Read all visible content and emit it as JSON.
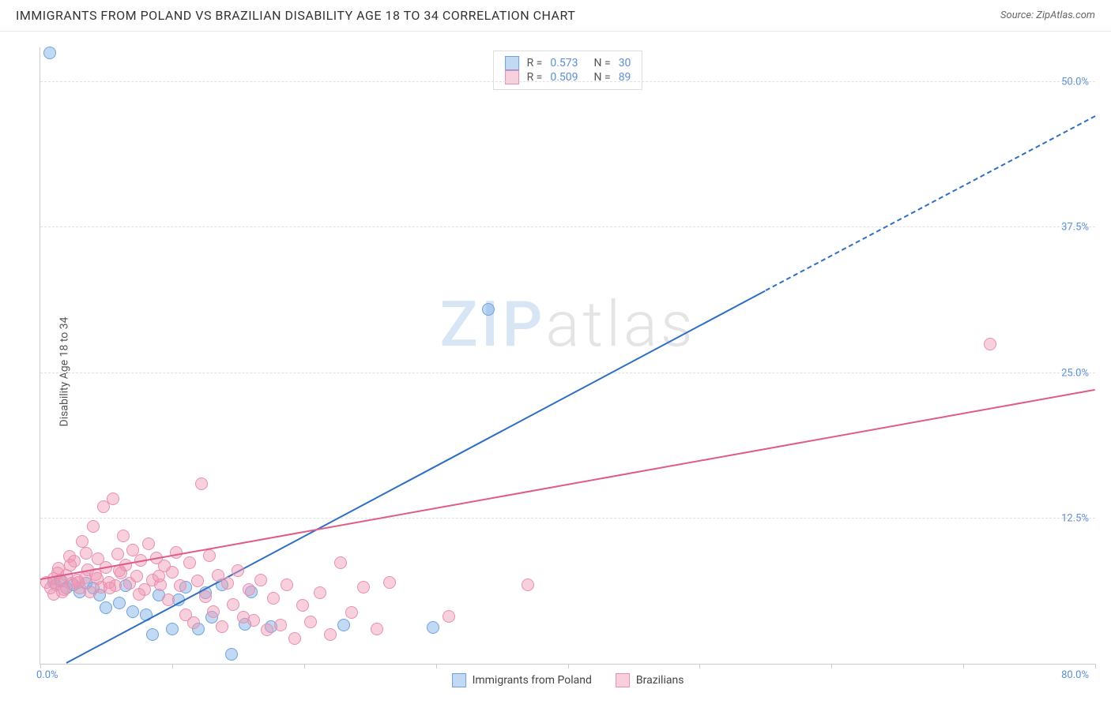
{
  "title": "IMMIGRANTS FROM POLAND VS BRAZILIAN DISABILITY AGE 18 TO 34 CORRELATION CHART",
  "source_label": "Source: ZipAtlas.com",
  "y_axis_label": "Disability Age 18 to 34",
  "watermark": {
    "part1": "ZIP",
    "part2": "atlas"
  },
  "chart": {
    "type": "scatter",
    "background_color": "#ffffff",
    "grid_color": "#e0e0e0",
    "axis_color": "#cccccc",
    "tick_label_color": "#5b8fd6",
    "label_fontsize": 14,
    "tick_fontsize": 13,
    "xlim": [
      0,
      80
    ],
    "ylim": [
      0,
      53
    ],
    "x_tick_positions": [
      0,
      10,
      20,
      30,
      40,
      50,
      60,
      70,
      80
    ],
    "x_start_label": "0.0%",
    "x_end_label": "80.0%",
    "y_grid": [
      {
        "v": 12.5,
        "label": "12.5%"
      },
      {
        "v": 25.0,
        "label": "25.0%"
      },
      {
        "v": 37.5,
        "label": "37.5%"
      },
      {
        "v": 50.0,
        "label": "50.0%"
      }
    ],
    "series": [
      {
        "key": "poland",
        "label": "Immigrants from Poland",
        "fill": "rgba(120,170,230,0.45)",
        "stroke": "#6fa2dd",
        "trend_color": "#2f6fc2",
        "marker_radius": 8,
        "R": "0.573",
        "N": "30",
        "trend": {
          "x1": 2,
          "y1": 0,
          "x2": 55,
          "y2": 32
        },
        "trend_dash": {
          "x1": 55,
          "y1": 32,
          "x2": 80,
          "y2": 47
        },
        "points": [
          {
            "x": 1,
            "y": 7
          },
          {
            "x": 1.5,
            "y": 7.2
          },
          {
            "x": 2,
            "y": 6.5
          },
          {
            "x": 2.5,
            "y": 6.8
          },
          {
            "x": 3,
            "y": 6.2
          },
          {
            "x": 3.5,
            "y": 6.9
          },
          {
            "x": 4,
            "y": 6.5
          },
          {
            "x": 4.5,
            "y": 5.9
          },
          {
            "x": 5,
            "y": 4.8
          },
          {
            "x": 6,
            "y": 5.2
          },
          {
            "x": 6.5,
            "y": 6.7
          },
          {
            "x": 7,
            "y": 4.5
          },
          {
            "x": 8,
            "y": 4.2
          },
          {
            "x": 8.5,
            "y": 2.5
          },
          {
            "x": 9,
            "y": 5.9
          },
          {
            "x": 10,
            "y": 3.0
          },
          {
            "x": 10.5,
            "y": 5.5
          },
          {
            "x": 11,
            "y": 6.6
          },
          {
            "x": 12,
            "y": 3.0
          },
          {
            "x": 12.5,
            "y": 6.1
          },
          {
            "x": 13,
            "y": 4.0
          },
          {
            "x": 13.8,
            "y": 6.8
          },
          {
            "x": 14.5,
            "y": 0.8
          },
          {
            "x": 15.5,
            "y": 3.4
          },
          {
            "x": 16,
            "y": 6.2
          },
          {
            "x": 17.5,
            "y": 3.2
          },
          {
            "x": 23,
            "y": 3.3
          },
          {
            "x": 29.8,
            "y": 3.1
          },
          {
            "x": 34,
            "y": 30.5
          },
          {
            "x": 0.7,
            "y": 52.5
          }
        ]
      },
      {
        "key": "brazilians",
        "label": "Brazilians",
        "fill": "rgba(240,150,180,0.45)",
        "stroke": "#e88fae",
        "trend_color": "#e05a8a",
        "marker_radius": 8,
        "R": "0.509",
        "N": "89",
        "trend": {
          "x1": 0,
          "y1": 7.2,
          "x2": 80,
          "y2": 23.5
        },
        "points": [
          {
            "x": 0.5,
            "y": 7
          },
          {
            "x": 0.8,
            "y": 6.5
          },
          {
            "x": 1,
            "y": 7.3
          },
          {
            "x": 1.2,
            "y": 6.8
          },
          {
            "x": 1.4,
            "y": 8.2
          },
          {
            "x": 1.6,
            "y": 7.1
          },
          {
            "x": 1.8,
            "y": 6.4
          },
          {
            "x": 2,
            "y": 7.6
          },
          {
            "x": 2.2,
            "y": 9.2
          },
          {
            "x": 2.4,
            "y": 6.9
          },
          {
            "x": 2.6,
            "y": 8.8
          },
          {
            "x": 2.8,
            "y": 7.2
          },
          {
            "x": 3,
            "y": 6.5
          },
          {
            "x": 3.2,
            "y": 10.5
          },
          {
            "x": 3.4,
            "y": 7.4
          },
          {
            "x": 3.6,
            "y": 8.1
          },
          {
            "x": 3.8,
            "y": 6.2
          },
          {
            "x": 4,
            "y": 11.8
          },
          {
            "x": 4.2,
            "y": 7.7
          },
          {
            "x": 4.4,
            "y": 9.0
          },
          {
            "x": 4.6,
            "y": 6.6
          },
          {
            "x": 4.8,
            "y": 13.5
          },
          {
            "x": 5,
            "y": 8.3
          },
          {
            "x": 5.2,
            "y": 7.0
          },
          {
            "x": 5.5,
            "y": 14.2
          },
          {
            "x": 5.7,
            "y": 6.7
          },
          {
            "x": 5.9,
            "y": 9.4
          },
          {
            "x": 6.1,
            "y": 7.8
          },
          {
            "x": 6.3,
            "y": 11.0
          },
          {
            "x": 6.5,
            "y": 8.5
          },
          {
            "x": 6.8,
            "y": 6.9
          },
          {
            "x": 7,
            "y": 9.8
          },
          {
            "x": 7.3,
            "y": 7.5
          },
          {
            "x": 7.6,
            "y": 8.9
          },
          {
            "x": 7.9,
            "y": 6.4
          },
          {
            "x": 8.2,
            "y": 10.3
          },
          {
            "x": 8.5,
            "y": 7.2
          },
          {
            "x": 8.8,
            "y": 9.1
          },
          {
            "x": 9.1,
            "y": 6.8
          },
          {
            "x": 9.4,
            "y": 8.4
          },
          {
            "x": 9.7,
            "y": 5.5
          },
          {
            "x": 10,
            "y": 7.9
          },
          {
            "x": 10.3,
            "y": 9.6
          },
          {
            "x": 10.6,
            "y": 6.7
          },
          {
            "x": 11,
            "y": 4.2
          },
          {
            "x": 11.3,
            "y": 8.7
          },
          {
            "x": 11.6,
            "y": 3.5
          },
          {
            "x": 11.9,
            "y": 7.1
          },
          {
            "x": 12.2,
            "y": 15.5
          },
          {
            "x": 12.5,
            "y": 5.8
          },
          {
            "x": 12.8,
            "y": 9.3
          },
          {
            "x": 13.1,
            "y": 4.5
          },
          {
            "x": 13.5,
            "y": 7.6
          },
          {
            "x": 13.8,
            "y": 3.2
          },
          {
            "x": 14.2,
            "y": 6.9
          },
          {
            "x": 14.6,
            "y": 5.1
          },
          {
            "x": 15,
            "y": 8.0
          },
          {
            "x": 15.4,
            "y": 4.0
          },
          {
            "x": 15.8,
            "y": 6.4
          },
          {
            "x": 16.2,
            "y": 3.7
          },
          {
            "x": 16.7,
            "y": 7.2
          },
          {
            "x": 17.2,
            "y": 2.9
          },
          {
            "x": 17.7,
            "y": 5.6
          },
          {
            "x": 18.2,
            "y": 3.3
          },
          {
            "x": 18.7,
            "y": 6.8
          },
          {
            "x": 19.3,
            "y": 2.2
          },
          {
            "x": 19.9,
            "y": 5.0
          },
          {
            "x": 20.5,
            "y": 3.6
          },
          {
            "x": 21.2,
            "y": 6.1
          },
          {
            "x": 22,
            "y": 2.5
          },
          {
            "x": 22.8,
            "y": 8.7
          },
          {
            "x": 23.6,
            "y": 4.4
          },
          {
            "x": 24.5,
            "y": 6.6
          },
          {
            "x": 25.5,
            "y": 3.0
          },
          {
            "x": 26.5,
            "y": 7.0
          },
          {
            "x": 31,
            "y": 4.1
          },
          {
            "x": 37,
            "y": 6.8
          },
          {
            "x": 72,
            "y": 27.5
          },
          {
            "x": 1,
            "y": 6
          },
          {
            "x": 1.3,
            "y": 7.8
          },
          {
            "x": 1.7,
            "y": 6.2
          },
          {
            "x": 2.3,
            "y": 8.5
          },
          {
            "x": 2.9,
            "y": 7.0
          },
          {
            "x": 3.5,
            "y": 9.5
          },
          {
            "x": 4.3,
            "y": 7.3
          },
          {
            "x": 5.3,
            "y": 6.5
          },
          {
            "x": 6.0,
            "y": 8.0
          },
          {
            "x": 7.5,
            "y": 6.0
          },
          {
            "x": 9.0,
            "y": 7.5
          }
        ]
      }
    ],
    "top_legend": {
      "R_label": "R  =",
      "N_label": "N  =",
      "value_color": "#5b8fd6",
      "text_color": "#555555"
    }
  }
}
